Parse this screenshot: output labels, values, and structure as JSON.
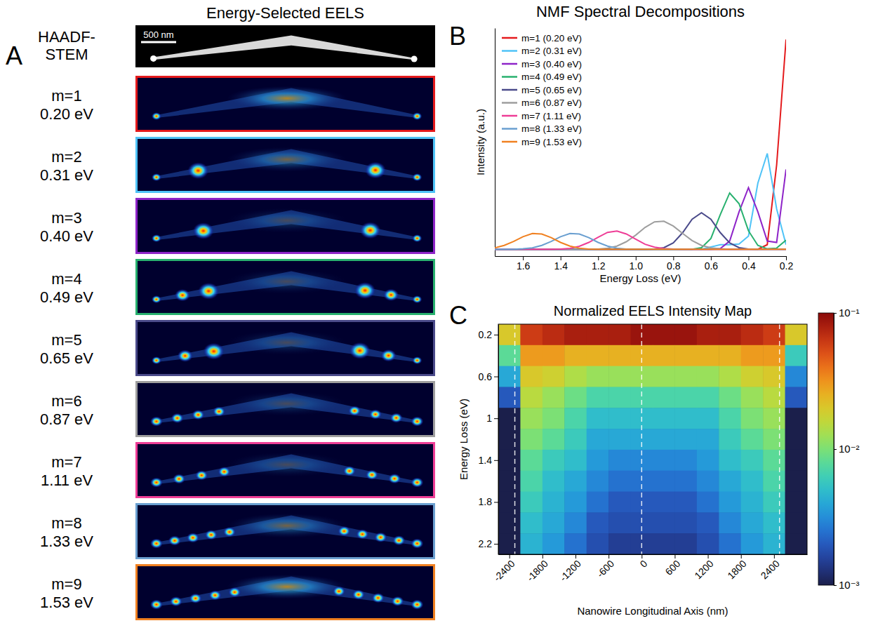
{
  "image_panel": {
    "panel_label": "A",
    "title": "Energy-Selected EELS",
    "reference_label": "HAADF-STEM",
    "scale_bar": "500 nm",
    "modes": [
      {
        "m": "m=1",
        "energy": "0.20 eV"
      },
      {
        "m": "m=2",
        "energy": "0.31 eV"
      },
      {
        "m": "m=3",
        "energy": "0.40 eV"
      },
      {
        "m": "m=4",
        "energy": "0.49 eV"
      },
      {
        "m": "m=5",
        "energy": "0.65 eV"
      },
      {
        "m": "m=6",
        "energy": "0.87 eV"
      },
      {
        "m": "m=7",
        "energy": "1.11 eV"
      },
      {
        "m": "m=8",
        "energy": "1.33 eV"
      },
      {
        "m": "m=9",
        "energy": "1.53 eV"
      }
    ]
  },
  "chart_data": [
    {
      "type": "line",
      "panel_label": "B",
      "title": "NMF Spectral Decompositions",
      "x_label": "Energy Loss (eV)",
      "y_label": "Intensity (a.u.)",
      "x": [
        1.75,
        1.7,
        1.65,
        1.6,
        1.55,
        1.5,
        1.45,
        1.4,
        1.35,
        1.3,
        1.25,
        1.2,
        1.15,
        1.1,
        1.05,
        1.0,
        0.95,
        0.9,
        0.85,
        0.8,
        0.75,
        0.7,
        0.65,
        0.6,
        0.55,
        0.5,
        0.45,
        0.4,
        0.35,
        0.3,
        0.25,
        0.2
      ],
      "xlim": [
        1.75,
        0.2
      ],
      "xticks": [
        1.6,
        1.4,
        1.2,
        {
          "value": 1,
          "label": "1.0"
        },
        0.8,
        0.6,
        0.4,
        0.2
      ],
      "ylim": [
        0,
        1
      ],
      "tick_labels": "x",
      "legend": "upper left",
      "series": [
        {
          "name": "m=1 (0.20 eV)",
          "color": "#e41a1c",
          "values": [
            0.03,
            0.03,
            0.03,
            0.03,
            0.03,
            0.03,
            0.03,
            0.03,
            0.03,
            0.03,
            0.03,
            0.03,
            0.03,
            0.03,
            0.03,
            0.03,
            0.03,
            0.03,
            0.03,
            0.03,
            0.03,
            0.03,
            0.03,
            0.03,
            0.03,
            0.03,
            0.03,
            0.03,
            0.03,
            0.05,
            0.4,
            0.95
          ]
        },
        {
          "name": "m=2 (0.31 eV)",
          "color": "#4fc3f7",
          "values": [
            0.03,
            0.03,
            0.03,
            0.03,
            0.03,
            0.03,
            0.03,
            0.03,
            0.03,
            0.03,
            0.03,
            0.03,
            0.03,
            0.03,
            0.03,
            0.03,
            0.03,
            0.03,
            0.03,
            0.03,
            0.03,
            0.03,
            0.03,
            0.04,
            0.05,
            0.05,
            0.053,
            0.088,
            0.32,
            0.45,
            0.207,
            0.05
          ]
        },
        {
          "name": "m=3 (0.40 eV)",
          "color": "#8e24c8",
          "values": [
            0.03,
            0.03,
            0.03,
            0.03,
            0.03,
            0.03,
            0.03,
            0.03,
            0.03,
            0.03,
            0.03,
            0.03,
            0.03,
            0.03,
            0.03,
            0.03,
            0.03,
            0.03,
            0.03,
            0.03,
            0.03,
            0.03,
            0.03,
            0.03,
            0.033,
            0.066,
            0.194,
            0.3,
            0.194,
            0.066,
            0.06,
            0.38
          ]
        },
        {
          "name": "m=4 (0.49 eV)",
          "color": "#27b06e",
          "values": [
            0.03,
            0.03,
            0.03,
            0.03,
            0.03,
            0.03,
            0.03,
            0.03,
            0.03,
            0.03,
            0.03,
            0.03,
            0.03,
            0.03,
            0.03,
            0.03,
            0.03,
            0.03,
            0.03,
            0.03,
            0.03,
            0.03,
            0.037,
            0.077,
            0.182,
            0.277,
            0.23,
            0.111,
            0.047,
            0.032,
            0.035,
            0.07
          ]
        },
        {
          "name": "m=5 (0.65 eV)",
          "color": "#4a4a8a",
          "values": [
            0.03,
            0.03,
            0.03,
            0.03,
            0.03,
            0.03,
            0.03,
            0.03,
            0.03,
            0.03,
            0.03,
            0.03,
            0.03,
            0.03,
            0.03,
            0.03,
            0.03,
            0.031,
            0.037,
            0.058,
            0.103,
            0.162,
            0.19,
            0.162,
            0.103,
            0.058,
            0.037,
            0.031,
            0.03,
            0.03,
            0.03,
            0.03
          ]
        },
        {
          "name": "m=6 (0.87 eV)",
          "color": "#9e9e9e",
          "values": [
            0.03,
            0.03,
            0.03,
            0.03,
            0.03,
            0.03,
            0.03,
            0.03,
            0.03,
            0.03,
            0.03,
            0.031,
            0.035,
            0.044,
            0.063,
            0.092,
            0.126,
            0.15,
            0.153,
            0.132,
            0.099,
            0.068,
            0.047,
            0.036,
            0.032,
            0.03,
            0.03,
            0.03,
            0.03,
            0.03,
            0.03,
            0.03
          ]
        },
        {
          "name": "m=7 (1.11 eV)",
          "color": "#ee3d96",
          "values": [
            0.03,
            0.03,
            0.03,
            0.03,
            0.03,
            0.03,
            0.03,
            0.031,
            0.034,
            0.043,
            0.06,
            0.083,
            0.104,
            0.11,
            0.097,
            0.074,
            0.052,
            0.039,
            0.033,
            0.031,
            0.03,
            0.03,
            0.03,
            0.03,
            0.03,
            0.03,
            0.03,
            0.03,
            0.03,
            0.03,
            0.03,
            0.03
          ]
        },
        {
          "name": "m=8 (1.33 eV)",
          "color": "#6a9fd0",
          "values": [
            0.03,
            0.03,
            0.03,
            0.032,
            0.036,
            0.047,
            0.064,
            0.085,
            0.099,
            0.097,
            0.081,
            0.06,
            0.044,
            0.035,
            0.031,
            0.03,
            0.03,
            0.03,
            0.03,
            0.03,
            0.03,
            0.03,
            0.03,
            0.03,
            0.03,
            0.03,
            0.03,
            0.03,
            0.03,
            0.03,
            0.03,
            0.03
          ]
        },
        {
          "name": "m=9 (1.53 eV)",
          "color": "#f08020",
          "values": [
            0.036,
            0.047,
            0.064,
            0.085,
            0.099,
            0.097,
            0.081,
            0.06,
            0.044,
            0.035,
            0.031,
            0.03,
            0.03,
            0.03,
            0.03,
            0.03,
            0.03,
            0.03,
            0.03,
            0.03,
            0.03,
            0.03,
            0.03,
            0.03,
            0.03,
            0.03,
            0.03,
            0.03,
            0.03,
            0.03,
            0.03,
            0.03
          ]
        }
      ]
    },
    {
      "type": "heatmap",
      "panel_label": "C",
      "title": "Normalized EELS Intensity Map",
      "x_label": "Nanowire Longitudinal Axis (nm)",
      "y_label": "Energy Loss (eV)",
      "xlim": [
        -2600,
        3000
      ],
      "xticks": [
        -2400,
        -1800,
        -1200,
        -600,
        0,
        600,
        1200,
        1800,
        2400
      ],
      "ylim": [
        0.1,
        2.3
      ],
      "yticks": [
        0.2,
        0.6,
        1,
        1.4,
        1.8,
        2.2
      ],
      "guide_lines": [
        -2300,
        0,
        2500
      ],
      "cells": {
        "x": [
          -2400,
          -2000,
          -1600,
          -1200,
          -800,
          -400,
          0,
          400,
          800,
          1200,
          1600,
          2000,
          2400,
          2800
        ],
        "y": [
          0.2,
          0.4,
          0.6,
          0.8,
          1.0,
          1.2,
          1.4,
          1.6,
          1.8,
          2.0,
          2.2
        ],
        "values": [
          [
            0.02,
            0.06,
            0.07,
            0.08,
            0.08,
            0.08,
            0.09,
            0.09,
            0.09,
            0.08,
            0.08,
            0.07,
            0.06,
            0.02
          ],
          [
            0.008,
            0.03,
            0.03,
            0.025,
            0.025,
            0.025,
            0.025,
            0.025,
            0.025,
            0.025,
            0.025,
            0.03,
            0.03,
            0.006
          ],
          [
            0.004,
            0.02,
            0.018,
            0.014,
            0.012,
            0.012,
            0.012,
            0.012,
            0.012,
            0.012,
            0.014,
            0.018,
            0.02,
            0.003
          ],
          [
            0.002,
            0.015,
            0.012,
            0.009,
            0.007,
            0.007,
            0.007,
            0.007,
            0.007,
            0.007,
            0.009,
            0.012,
            0.015,
            0.002
          ],
          [
            0.001,
            0.012,
            0.01,
            0.007,
            0.005,
            0.005,
            0.005,
            0.005,
            0.005,
            0.005,
            0.007,
            0.01,
            0.012,
            0.001
          ],
          [
            0.001,
            0.01,
            0.008,
            0.006,
            0.004,
            0.004,
            0.004,
            0.004,
            0.004,
            0.004,
            0.006,
            0.008,
            0.01,
            0.001
          ],
          [
            0.001,
            0.008,
            0.006,
            0.005,
            0.0035,
            0.003,
            0.003,
            0.003,
            0.003,
            0.0035,
            0.005,
            0.006,
            0.008,
            0.001
          ],
          [
            0.001,
            0.007,
            0.005,
            0.004,
            0.003,
            0.0025,
            0.0025,
            0.0025,
            0.0025,
            0.003,
            0.004,
            0.005,
            0.007,
            0.001
          ],
          [
            0.001,
            0.006,
            0.0045,
            0.0035,
            0.0025,
            0.002,
            0.002,
            0.002,
            0.002,
            0.0025,
            0.0035,
            0.0045,
            0.006,
            0.001
          ],
          [
            0.001,
            0.005,
            0.004,
            0.003,
            0.002,
            0.0018,
            0.0018,
            0.0018,
            0.0018,
            0.002,
            0.003,
            0.004,
            0.005,
            0.001
          ],
          [
            0.001,
            0.0045,
            0.0035,
            0.0025,
            0.0018,
            0.0015,
            0.0015,
            0.0015,
            0.0015,
            0.0018,
            0.0025,
            0.0035,
            0.0045,
            0.001
          ]
        ]
      },
      "colorbar": {
        "range": [
          0.001,
          0.1
        ],
        "log": true,
        "ticks": [
          {
            "value": 0.1,
            "label": "10⁻¹"
          },
          {
            "value": 0.01,
            "label": "10⁻²"
          },
          {
            "value": 0.001,
            "label": "10⁻³"
          }
        ]
      }
    }
  ]
}
